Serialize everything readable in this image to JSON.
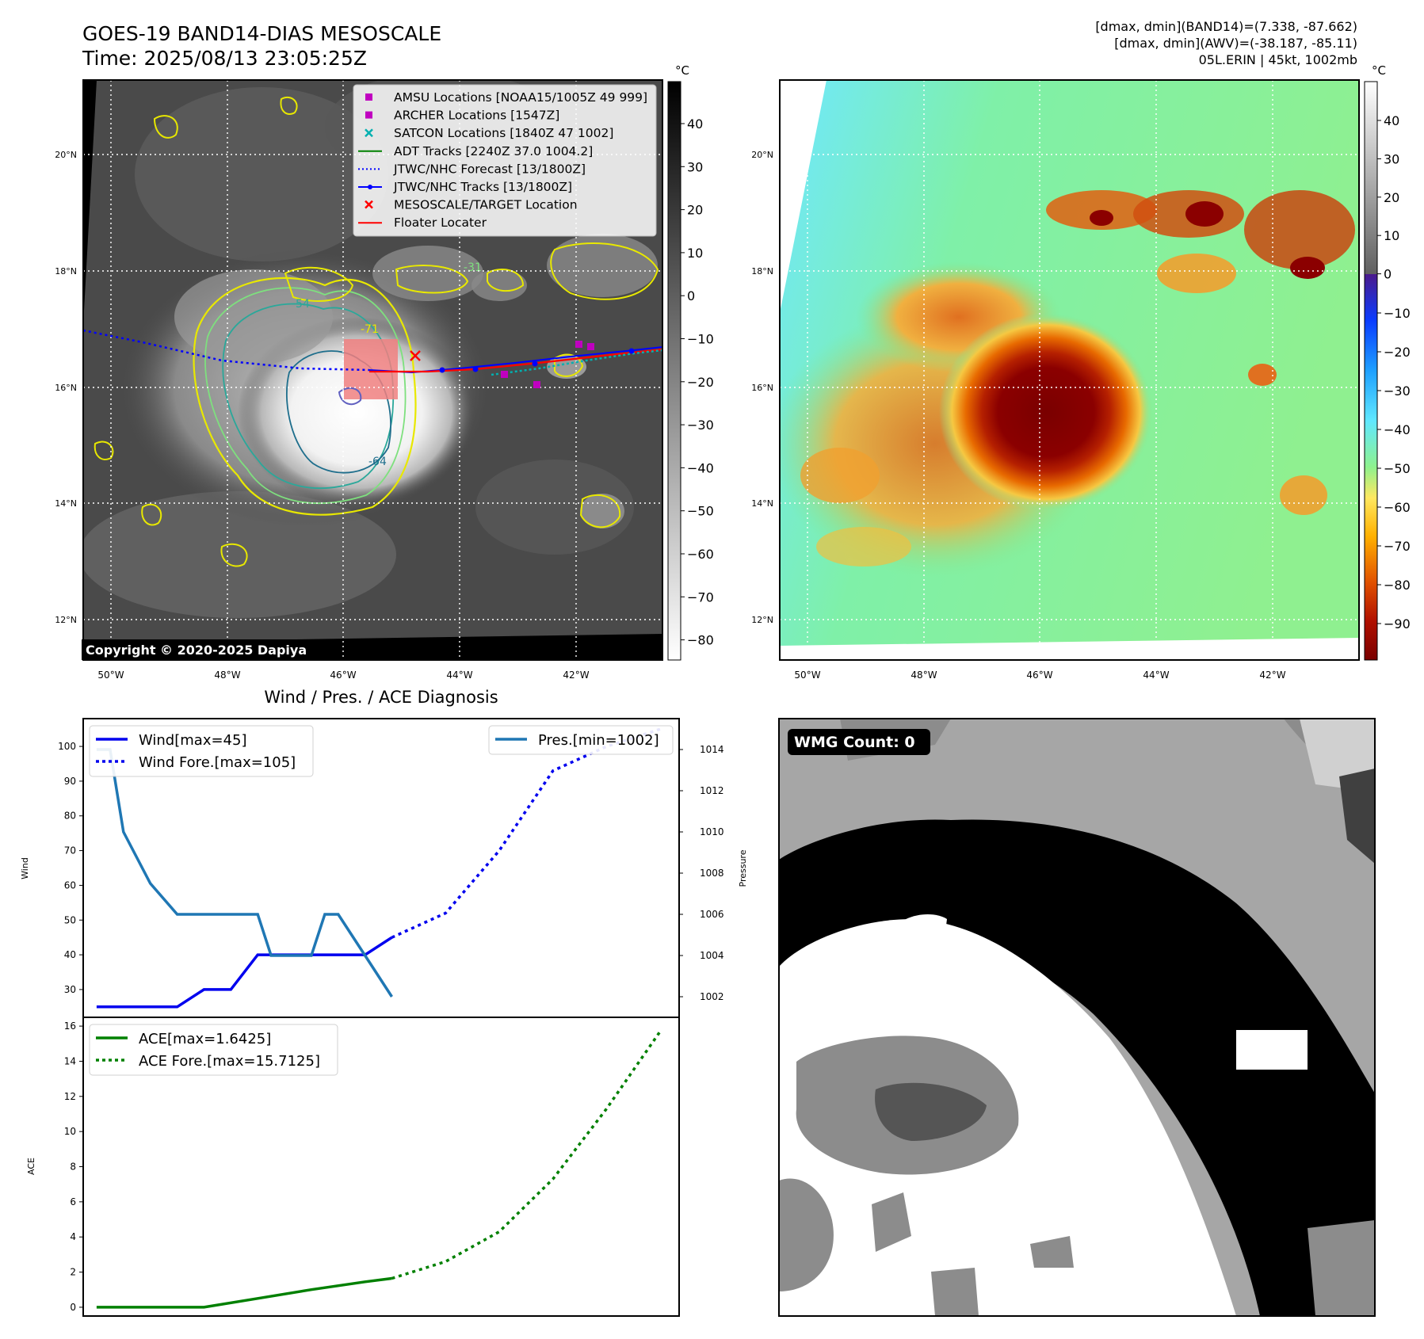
{
  "header": {
    "title": "GOES-19 BAND14-DIAS MESOSCALE",
    "time": "Time: 2025/08/13 23:05:25Z",
    "dmax_band14": "[dmax, dmin](BAND14)=(7.338, -87.662)",
    "dmax_awv": "[dmax, dmin](AWV)=(-38.187, -85.11)",
    "storm": "05L.ERIN | 45kt, 1002mb"
  },
  "map": {
    "lat_labels": [
      "20°N",
      "18°N",
      "16°N",
      "14°N",
      "12°N"
    ],
    "lon_labels": [
      "50°W",
      "48°W",
      "46°W",
      "44°W",
      "42°W"
    ],
    "colorbar_unit": "°C",
    "colorbar_ticks_gray": [
      "40",
      "30",
      "20",
      "10",
      "0",
      "−10",
      "−20",
      "−30",
      "−40",
      "−50",
      "−60",
      "−70",
      "−80"
    ],
    "colorbar_ticks_color": [
      "40",
      "30",
      "20",
      "10",
      "0",
      "−10",
      "−20",
      "−30",
      "−40",
      "−50",
      "−60",
      "−70",
      "−80",
      "−90"
    ],
    "copyright": "Copyright © 2020-2025 Dapiya",
    "contour_labels": [
      "-31",
      "-54",
      "-64",
      "-71"
    ],
    "legend": [
      {
        "label": "AMSU Locations [NOAA15/1005Z 49 999]",
        "color": "#c000c0",
        "marker": "square"
      },
      {
        "label": "ARCHER Locations [1547Z]",
        "color": "#c000c0",
        "marker": "square"
      },
      {
        "label": "SATCON Locations [1840Z 47 1002]",
        "color": "#00b0b0",
        "marker": "x"
      },
      {
        "label": "ADT Tracks [2240Z 37.0 1004.2]",
        "color": "#008000",
        "marker": "line"
      },
      {
        "label": "JTWC/NHC Forecast [13/1800Z]",
        "color": "#0000ff",
        "marker": "dotted"
      },
      {
        "label": "JTWC/NHC Tracks [13/1800Z]",
        "color": "#0000ff",
        "marker": "line-dot"
      },
      {
        "label": "MESOSCALE/TARGET Location",
        "color": "#ff0000",
        "marker": "x"
      },
      {
        "label": "Floater Locater",
        "color": "#ff0000",
        "marker": "line"
      }
    ]
  },
  "diag": {
    "title": "Wind / Pres. / ACE Diagnosis",
    "wind_ylabel": "Wind",
    "pres_ylabel": "Pressure",
    "ace_ylabel": "ACE",
    "wind_legend": [
      "Wind[max=45]",
      "Wind Fore.[max=105]"
    ],
    "pres_legend": "Pres.[min=1002]",
    "ace_legend": [
      "ACE[max=1.6425]",
      "ACE Fore.[max=15.7125]"
    ],
    "wmg": "WMG Count: 0"
  },
  "chart_data": [
    {
      "type": "line",
      "series": [
        {
          "name": "Wind[max=45]",
          "color": "#0000ee",
          "style": "solid",
          "x": [
            0,
            1,
            2,
            3,
            4,
            5,
            6,
            7,
            8,
            9,
            10,
            11
          ],
          "values": [
            25,
            25,
            25,
            25,
            30,
            30,
            40,
            40,
            40,
            40,
            40,
            45
          ]
        },
        {
          "name": "Wind Fore.[max=105]",
          "color": "#0000ee",
          "style": "dotted",
          "x": [
            11,
            13,
            15,
            17,
            19,
            21
          ],
          "values": [
            45,
            52,
            70,
            93,
            100,
            105
          ]
        },
        {
          "name": "Pres.[min=1002]",
          "color": "#1f77b4",
          "style": "solid",
          "axis": "right",
          "x": [
            0,
            0.5,
            1,
            2,
            3,
            4,
            5,
            6,
            6.5,
            7,
            8,
            8.5,
            9,
            10,
            11
          ],
          "values": [
            1014,
            1014,
            1010,
            1007.5,
            1006,
            1006,
            1006,
            1006,
            1004,
            1004,
            1004,
            1006,
            1006,
            1004,
            1002
          ]
        }
      ],
      "ylabel": "Wind",
      "ylim": [
        22,
        108
      ],
      "y2label": "Pressure",
      "y2lim": [
        1001,
        1015.5
      ],
      "xlim": [
        -0.5,
        21.7
      ]
    },
    {
      "type": "line",
      "series": [
        {
          "name": "ACE[max=1.6425]",
          "color": "#008000",
          "style": "solid",
          "x": [
            0,
            4,
            6,
            8,
            10,
            11
          ],
          "values": [
            0,
            0,
            0.5,
            1.0,
            1.45,
            1.6425
          ]
        },
        {
          "name": "ACE Fore.[max=15.7125]",
          "color": "#008000",
          "style": "dotted",
          "x": [
            11,
            13,
            15,
            17,
            19,
            21
          ],
          "values": [
            1.6425,
            2.6,
            4.3,
            7.3,
            11.3,
            15.7125
          ]
        }
      ],
      "ylabel": "ACE",
      "ylim": [
        -0.5,
        16.5
      ],
      "xlim": [
        -0.5,
        21.7
      ]
    }
  ]
}
